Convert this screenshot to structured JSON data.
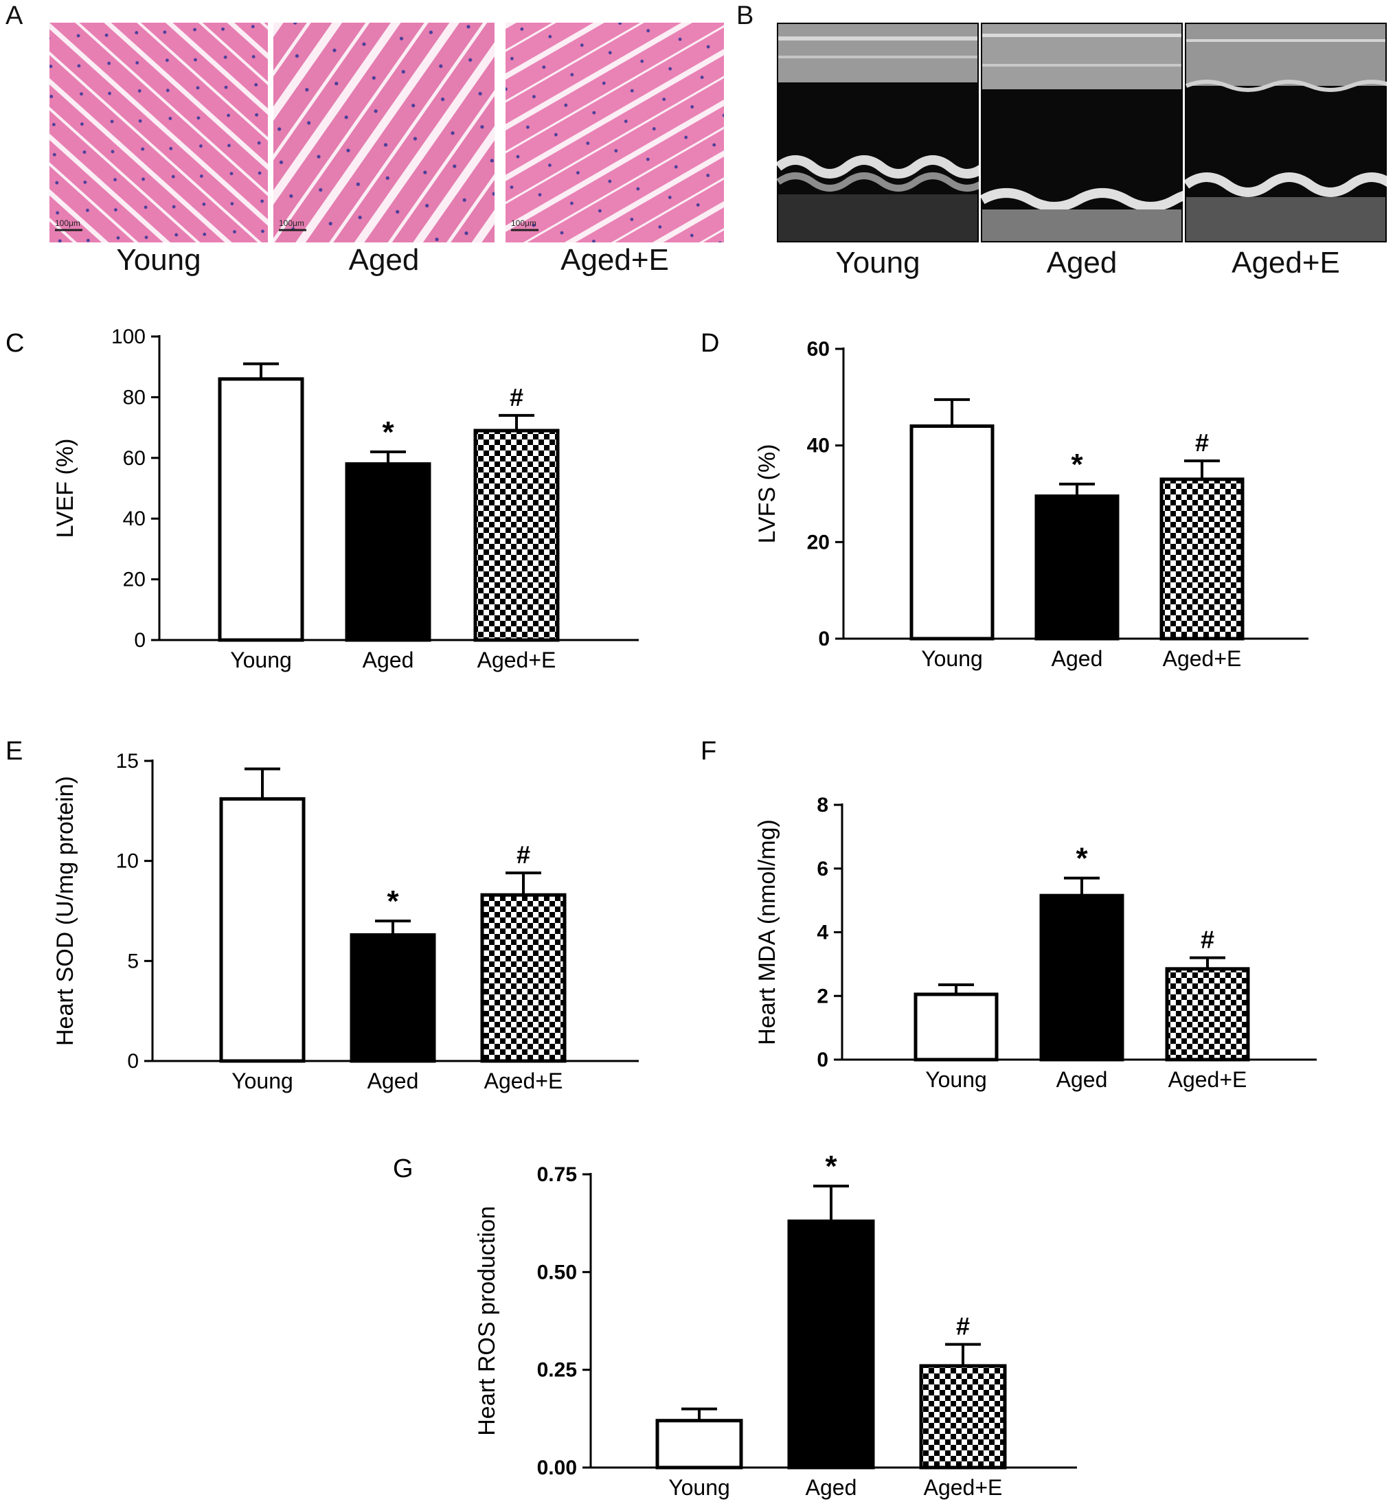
{
  "panels": {
    "A": {
      "label": "A",
      "captions": [
        "Young",
        "Aged",
        "Aged+E"
      ],
      "scalebar": "100μm",
      "colors": {
        "tissue": "#e77fb3",
        "nuclei": "#4a3f9a",
        "gap": "#fbeef4"
      }
    },
    "B": {
      "label": "B",
      "captions": [
        "Young",
        "Aged",
        "Aged+E"
      ]
    }
  },
  "chart_data": [
    {
      "label": "C",
      "type": "bar",
      "categories": [
        "Young",
        "Aged",
        "Aged+E"
      ],
      "values": [
        86,
        58,
        69
      ],
      "errors": [
        5,
        4,
        5
      ],
      "marks": [
        "",
        "*",
        "#"
      ],
      "ylabel": "LVEF (%)",
      "ylim": [
        0,
        100
      ],
      "yticks": [
        "0",
        "20",
        "40",
        "60",
        "80",
        "100"
      ],
      "fills": [
        "white",
        "black",
        "checker"
      ],
      "bold_ticks": false
    },
    {
      "label": "D",
      "type": "bar",
      "categories": [
        "Young",
        "Aged",
        "Aged+E"
      ],
      "values": [
        44,
        29.5,
        33
      ],
      "errors": [
        5.5,
        2.5,
        3.8
      ],
      "marks": [
        "",
        "*",
        "#"
      ],
      "ylabel": "LVFS (%)",
      "ylim": [
        0,
        60
      ],
      "yticks": [
        "0",
        "20",
        "40",
        "60"
      ],
      "fills": [
        "white",
        "black",
        "checker"
      ],
      "bold_ticks": true
    },
    {
      "label": "E",
      "type": "bar",
      "categories": [
        "Young",
        "Aged",
        "Aged+E"
      ],
      "values": [
        13.1,
        6.3,
        8.3
      ],
      "errors": [
        1.5,
        0.7,
        1.1
      ],
      "marks": [
        "",
        "*",
        "#"
      ],
      "ylabel": "Heart SOD (U/mg protein)",
      "ylim": [
        0,
        15
      ],
      "yticks": [
        "0",
        "5",
        "10",
        "15"
      ],
      "fills": [
        "white",
        "black",
        "checker"
      ],
      "bold_ticks": false
    },
    {
      "label": "F",
      "type": "bar",
      "categories": [
        "Young",
        "Aged",
        "Aged+E"
      ],
      "values": [
        2.05,
        5.15,
        2.85
      ],
      "errors": [
        0.3,
        0.55,
        0.35
      ],
      "marks": [
        "",
        "*",
        "#"
      ],
      "ylabel": "Heart MDA (nmol/mg)",
      "ylim": [
        0,
        8
      ],
      "yticks": [
        "0",
        "2",
        "4",
        "6",
        "8"
      ],
      "fills": [
        "white",
        "black",
        "checker"
      ],
      "bold_ticks": true
    },
    {
      "label": "G",
      "type": "bar",
      "categories": [
        "Young",
        "Aged",
        "Aged+E"
      ],
      "values": [
        0.12,
        0.63,
        0.26
      ],
      "errors": [
        0.03,
        0.09,
        0.055
      ],
      "marks": [
        "",
        "*",
        "#"
      ],
      "ylabel": "Heart ROS production",
      "ylim": [
        0,
        0.75
      ],
      "yticks": [
        "0.00",
        "0.25",
        "0.50",
        "0.75"
      ],
      "fills": [
        "white",
        "black",
        "checker"
      ],
      "bold_ticks": true
    }
  ]
}
